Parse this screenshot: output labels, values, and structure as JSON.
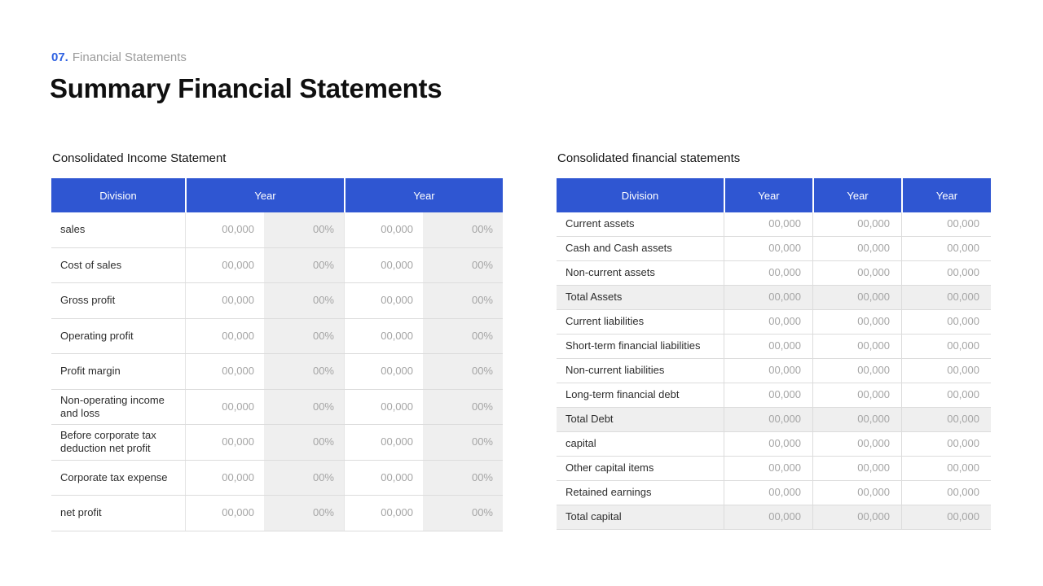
{
  "page": {
    "kicker": {
      "number": "07.",
      "label": "Financial Statements"
    },
    "title": "Summary Financial Statements"
  },
  "colors": {
    "header_blue": "#2f56d2",
    "kicker_blue": "#2f62e2",
    "shaded_cell": "#efefef",
    "border_gray": "#dcdcdc",
    "label_text": "#2d2d2d",
    "value_text": "#a5a5a5",
    "muted_text": "#9b9b9b"
  },
  "income_statement": {
    "title": "Consolidated Income Statement",
    "columns": [
      "Division",
      "Year",
      "Year"
    ],
    "rows": [
      {
        "label": "sales",
        "values": [
          "00,000",
          "00%",
          "00,000",
          "00%"
        ]
      },
      {
        "label": "Cost of sales",
        "values": [
          "00,000",
          "00%",
          "00,000",
          "00%"
        ]
      },
      {
        "label": "Gross profit",
        "values": [
          "00,000",
          "00%",
          "00,000",
          "00%"
        ]
      },
      {
        "label": "Operating profit",
        "values": [
          "00,000",
          "00%",
          "00,000",
          "00%"
        ]
      },
      {
        "label": "Profit margin",
        "values": [
          "00,000",
          "00%",
          "00,000",
          "00%"
        ]
      },
      {
        "label": "Non-operating income and loss",
        "values": [
          "00,000",
          "00%",
          "00,000",
          "00%"
        ]
      },
      {
        "label": "Before corporate tax deduction net profit",
        "values": [
          "00,000",
          "00%",
          "00,000",
          "00%"
        ]
      },
      {
        "label": "Corporate tax expense",
        "values": [
          "00,000",
          "00%",
          "00,000",
          "00%"
        ]
      },
      {
        "label": "net profit",
        "values": [
          "00,000",
          "00%",
          "00,000",
          "00%"
        ]
      }
    ]
  },
  "balance_sheet": {
    "title": "Consolidated financial statements",
    "columns": [
      "Division",
      "Year",
      "Year",
      "Year"
    ],
    "rows": [
      {
        "label": "Current assets",
        "total": false,
        "values": [
          "00,000",
          "00,000",
          "00,000"
        ]
      },
      {
        "label": "Cash and Cash assets",
        "total": false,
        "values": [
          "00,000",
          "00,000",
          "00,000"
        ]
      },
      {
        "label": "Non-current assets",
        "total": false,
        "values": [
          "00,000",
          "00,000",
          "00,000"
        ]
      },
      {
        "label": "Total Assets",
        "total": true,
        "values": [
          "00,000",
          "00,000",
          "00,000"
        ]
      },
      {
        "label": "Current liabilities",
        "total": false,
        "values": [
          "00,000",
          "00,000",
          "00,000"
        ]
      },
      {
        "label": "Short-term financial liabilities",
        "total": false,
        "values": [
          "00,000",
          "00,000",
          "00,000"
        ]
      },
      {
        "label": "Non-current liabilities",
        "total": false,
        "values": [
          "00,000",
          "00,000",
          "00,000"
        ]
      },
      {
        "label": "Long-term financial debt",
        "total": false,
        "values": [
          "00,000",
          "00,000",
          "00,000"
        ]
      },
      {
        "label": "Total Debt",
        "total": true,
        "values": [
          "00,000",
          "00,000",
          "00,000"
        ]
      },
      {
        "label": "capital",
        "total": false,
        "values": [
          "00,000",
          "00,000",
          "00,000"
        ]
      },
      {
        "label": "Other capital items",
        "total": false,
        "values": [
          "00,000",
          "00,000",
          "00,000"
        ]
      },
      {
        "label": "Retained earnings",
        "total": false,
        "values": [
          "00,000",
          "00,000",
          "00,000"
        ]
      },
      {
        "label": "Total capital",
        "total": true,
        "values": [
          "00,000",
          "00,000",
          "00,000"
        ]
      }
    ]
  }
}
